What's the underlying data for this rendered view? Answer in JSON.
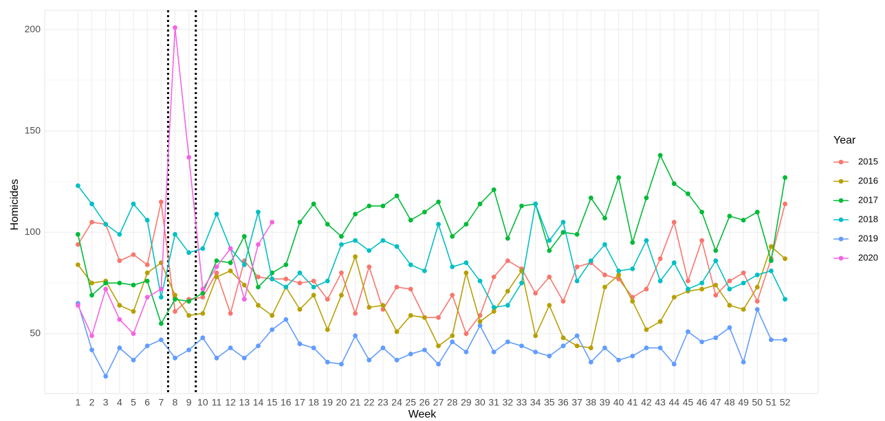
{
  "chart_data": {
    "type": "line",
    "x_label": "Week",
    "y_label": "Homicides",
    "legend_title": "Year",
    "x": [
      1,
      2,
      3,
      4,
      5,
      6,
      7,
      8,
      9,
      10,
      11,
      12,
      13,
      14,
      15,
      16,
      17,
      18,
      19,
      20,
      21,
      22,
      23,
      24,
      25,
      26,
      27,
      28,
      29,
      30,
      31,
      32,
      33,
      34,
      35,
      36,
      37,
      38,
      39,
      40,
      41,
      42,
      43,
      44,
      45,
      46,
      47,
      48,
      49,
      50,
      51,
      52
    ],
    "xlim": [
      -1.4,
      54.4
    ],
    "xticks": [
      1,
      2,
      3,
      4,
      5,
      6,
      7,
      8,
      9,
      10,
      11,
      12,
      13,
      14,
      15,
      16,
      17,
      18,
      19,
      20,
      21,
      22,
      23,
      24,
      25,
      26,
      27,
      28,
      29,
      30,
      31,
      32,
      33,
      34,
      35,
      36,
      37,
      38,
      39,
      40,
      41,
      42,
      43,
      44,
      45,
      46,
      47,
      48,
      49,
      50,
      51,
      52
    ],
    "ylim": [
      20.5,
      209.5
    ],
    "yticks": [
      50,
      100,
      150,
      200
    ],
    "grid": true,
    "legend": "right",
    "vlines": [
      7.5,
      9.5
    ],
    "series": [
      {
        "name": "2015",
        "color": "#F8766D",
        "values": [
          94,
          105,
          104,
          86,
          89,
          84,
          115,
          61,
          67,
          68,
          80,
          60,
          86,
          78,
          77,
          77,
          75,
          76,
          67,
          80,
          60,
          83,
          62,
          73,
          72,
          58,
          58,
          69,
          50,
          59,
          78,
          86,
          82,
          70,
          78,
          66,
          83,
          85,
          79,
          77,
          68,
          72,
          87,
          105,
          76,
          96,
          69,
          76,
          80,
          66,
          87,
          114
        ]
      },
      {
        "name": "2016",
        "color": "#B79F00",
        "values": [
          84,
          75,
          76,
          64,
          61,
          80,
          85,
          69,
          59,
          60,
          78,
          81,
          74,
          64,
          59,
          73,
          62,
          69,
          52,
          69,
          88,
          63,
          64,
          51,
          59,
          58,
          44,
          49,
          80,
          56,
          61,
          71,
          81,
          49,
          64,
          48,
          44,
          43,
          73,
          79,
          66,
          52,
          56,
          68,
          71,
          72,
          74,
          64,
          62,
          73,
          93,
          87
        ]
      },
      {
        "name": "2017",
        "color": "#00BA38",
        "values": [
          99,
          69,
          75,
          75,
          74,
          76,
          55,
          67,
          66,
          70,
          86,
          85,
          98,
          73,
          80,
          84,
          105,
          114,
          104,
          98,
          109,
          113,
          113,
          118,
          106,
          110,
          115,
          98,
          104,
          114,
          121,
          97,
          113,
          114,
          91,
          100,
          99,
          117,
          107,
          127,
          95,
          117,
          138,
          124,
          119,
          110,
          91,
          108,
          106,
          110,
          86,
          127
        ]
      },
      {
        "name": "2018",
        "color": "#00BFC4",
        "values": [
          123,
          114,
          104,
          99,
          114,
          106,
          68,
          99,
          90,
          92,
          109,
          92,
          84,
          110,
          77,
          73,
          80,
          73,
          76,
          94,
          96,
          91,
          96,
          93,
          84,
          81,
          104,
          83,
          85,
          76,
          63,
          64,
          75,
          114,
          96,
          105,
          76,
          86,
          94,
          81,
          82,
          96,
          76,
          85,
          72,
          75,
          86,
          72,
          75,
          79,
          81,
          67
        ]
      },
      {
        "name": "2019",
        "color": "#619CFF",
        "values": [
          65,
          42,
          29,
          43,
          37,
          44,
          47,
          38,
          42,
          48,
          38,
          43,
          38,
          44,
          52,
          57,
          45,
          43,
          36,
          35,
          49,
          37,
          43,
          37,
          40,
          42,
          35,
          46,
          41,
          54,
          41,
          46,
          44,
          41,
          39,
          44,
          49,
          36,
          43,
          37,
          39,
          43,
          43,
          35,
          51,
          46,
          48,
          53,
          36,
          62,
          47,
          47
        ]
      },
      {
        "name": "2020",
        "color": "#F564E3",
        "values": [
          64,
          49,
          72,
          57,
          50,
          68,
          72,
          201,
          137,
          72,
          83,
          92,
          67,
          94,
          105,
          null,
          null,
          null,
          null,
          null,
          null,
          null,
          null,
          null,
          null,
          null,
          null,
          null,
          null,
          null,
          null,
          null,
          null,
          null,
          null,
          null,
          null,
          null,
          null,
          null,
          null,
          null,
          null,
          null,
          null,
          null,
          null,
          null,
          null,
          null,
          null,
          null
        ]
      }
    ]
  }
}
